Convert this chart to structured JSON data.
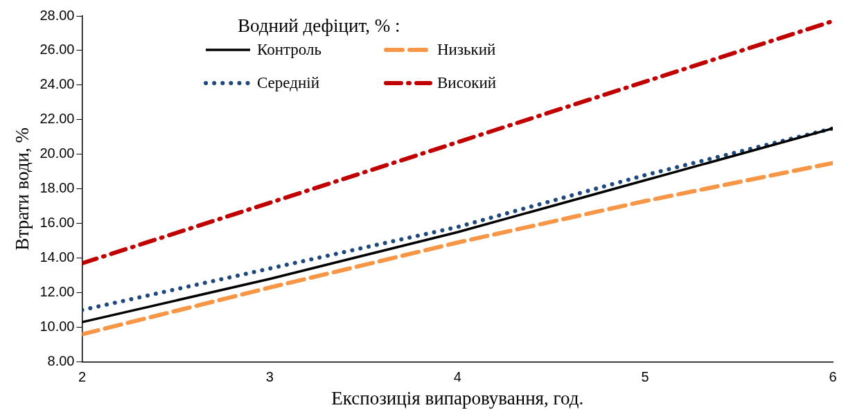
{
  "chart_data": {
    "type": "line",
    "xlabel": "Експозиція випаровування, год.",
    "ylabel": "Втрати води, %",
    "legend_title": "Водний дефіцит, % :",
    "legend": "top",
    "grid": false,
    "marker": "none",
    "x": [
      2,
      3,
      4,
      5,
      6
    ],
    "xlim": [
      2,
      6
    ],
    "xticks": [
      2,
      3,
      4,
      5,
      6
    ],
    "ylim": [
      8,
      28
    ],
    "yticks": [
      {
        "value": 8,
        "label": "8.00"
      },
      {
        "value": 10,
        "label": "10.00"
      },
      {
        "value": 12,
        "label": "12.00"
      },
      {
        "value": 14,
        "label": "14.00"
      },
      {
        "value": 16,
        "label": "16.00"
      },
      {
        "value": 18,
        "label": "18.00"
      },
      {
        "value": 20,
        "label": "20.00"
      },
      {
        "value": 22,
        "label": "22.00"
      },
      {
        "value": 24,
        "label": "24.00"
      },
      {
        "value": 26,
        "label": "26.00"
      },
      {
        "value": 28,
        "label": "28.00"
      }
    ],
    "series": [
      {
        "name": "Контроль",
        "color": "#000000",
        "line_style": "solid",
        "values": [
          10.3,
          12.8,
          15.5,
          18.5,
          21.5
        ]
      },
      {
        "name": "Низький",
        "color": "#f79646",
        "line_style": "dashed",
        "values": [
          9.6,
          12.3,
          14.9,
          17.3,
          19.5
        ]
      },
      {
        "name": "Середній",
        "color": "#1f497d",
        "line_style": "dotted",
        "values": [
          11.0,
          13.4,
          15.8,
          18.8,
          21.5
        ]
      },
      {
        "name": "Високий",
        "color": "#c00000",
        "line_style": "dashed",
        "values": [
          13.7,
          17.2,
          20.7,
          24.2,
          27.7
        ]
      }
    ]
  }
}
